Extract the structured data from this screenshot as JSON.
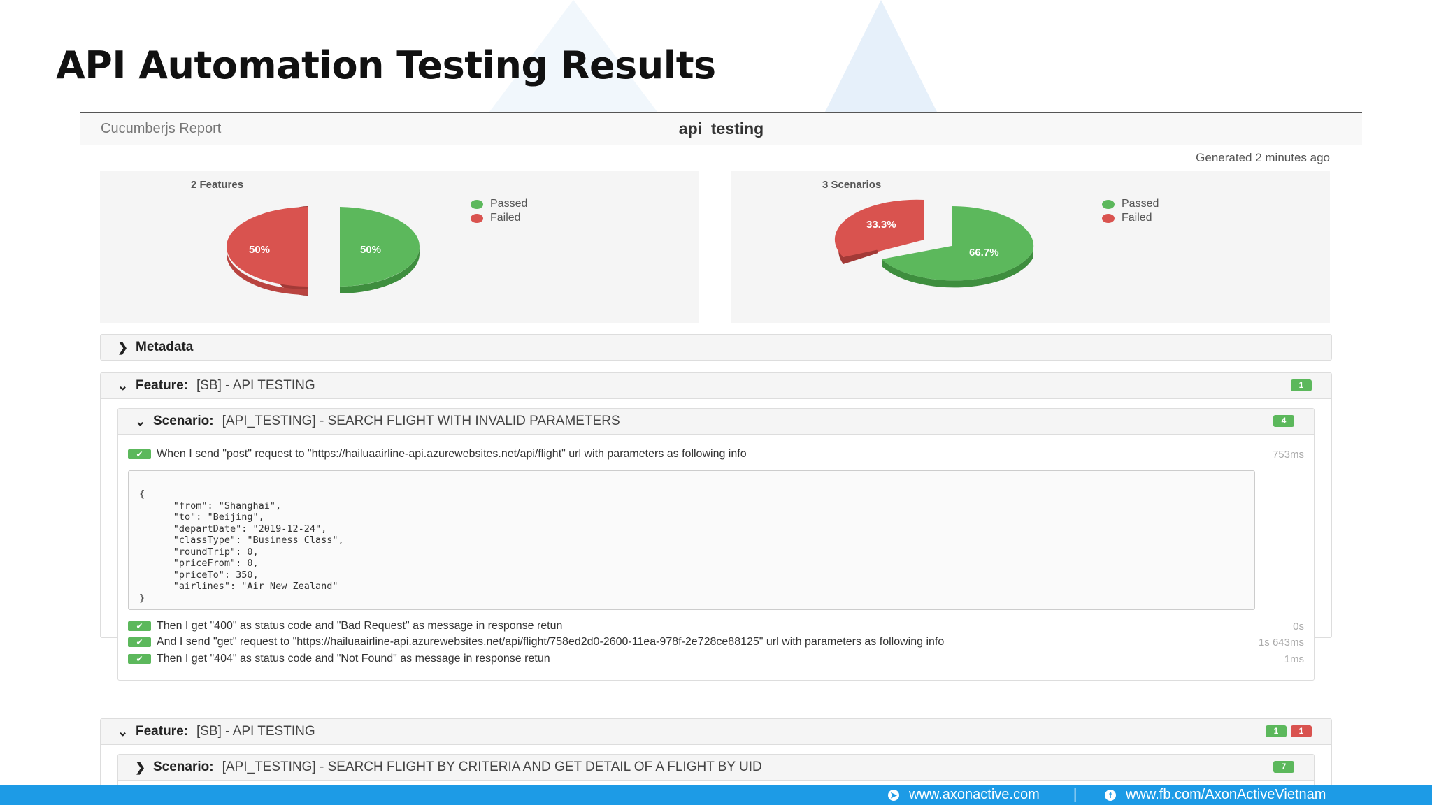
{
  "slide": {
    "title": "API Automation Testing Results"
  },
  "report": {
    "brand": "Cucumberjs Report",
    "title": "api_testing",
    "generated": "Generated 2 minutes ago"
  },
  "charts": {
    "features": {
      "title": "2 Features",
      "passed_pct": "50%",
      "failed_pct": "50%"
    },
    "scenarios": {
      "title": "3 Scenarios",
      "passed_pct": "66.7%",
      "failed_pct": "33.3%"
    },
    "legend": {
      "passed": "Passed",
      "failed": "Failed"
    },
    "colors": {
      "passed": "#5cb85c",
      "failed": "#d9534f"
    }
  },
  "chart_data": [
    {
      "type": "pie",
      "title": "2 Features",
      "categories": [
        "Passed",
        "Failed"
      ],
      "values": [
        50,
        50
      ],
      "legend": "top-right"
    },
    {
      "type": "pie",
      "title": "3 Scenarios",
      "categories": [
        "Passed",
        "Failed"
      ],
      "values": [
        66.7,
        33.3
      ],
      "legend": "top-right"
    }
  ],
  "metadata": {
    "label": "Metadata"
  },
  "feature1": {
    "keyword": "Feature:",
    "name": "[SB] - API TESTING",
    "badge_passed": "1",
    "scenario": {
      "keyword": "Scenario:",
      "name": "[API_TESTING] - SEARCH FLIGHT WITH INVALID PARAMETERS",
      "badge_passed": "4",
      "steps": [
        {
          "text": "When I send \"post\" request to \"https://hailuaairline-api.azurewebsites.net/api/flight\" url with parameters as following info",
          "duration": "753ms"
        },
        {
          "text": "Then I get \"400\" as status code and \"Bad Request\" as message in response retun",
          "duration": "0s"
        },
        {
          "text": "And I send \"get\" request to \"https://hailuaairline-api.azurewebsites.net/api/flight/758ed2d0-2600-11ea-978f-2e728ce88125\" url with parameters as following info",
          "duration": "1s 643ms"
        },
        {
          "text": "Then I get \"404\" as status code and \"Not Found\" as message in response retun",
          "duration": "1ms"
        }
      ],
      "docstring": "{\n      \"from\": \"Shanghai\",\n      \"to\": \"Beijing\",\n      \"departDate\": \"2019-12-24\",\n      \"classType\": \"Business Class\",\n      \"roundTrip\": 0,\n      \"priceFrom\": 0,\n      \"priceTo\": 350,\n      \"airlines\": \"Air New Zealand\"\n}"
    }
  },
  "feature2": {
    "keyword": "Feature:",
    "name": "[SB] - API TESTING",
    "badge_passed": "1",
    "badge_failed": "1",
    "scenario": {
      "keyword": "Scenario:",
      "name": "[API_TESTING] - SEARCH FLIGHT BY CRITERIA AND GET DETAIL OF A FLIGHT BY UID",
      "badge_passed": "7"
    }
  },
  "footer": {
    "website": "www.axonactive.com",
    "separator": "|",
    "facebook": "www.fb.com/AxonActiveVietnam"
  }
}
